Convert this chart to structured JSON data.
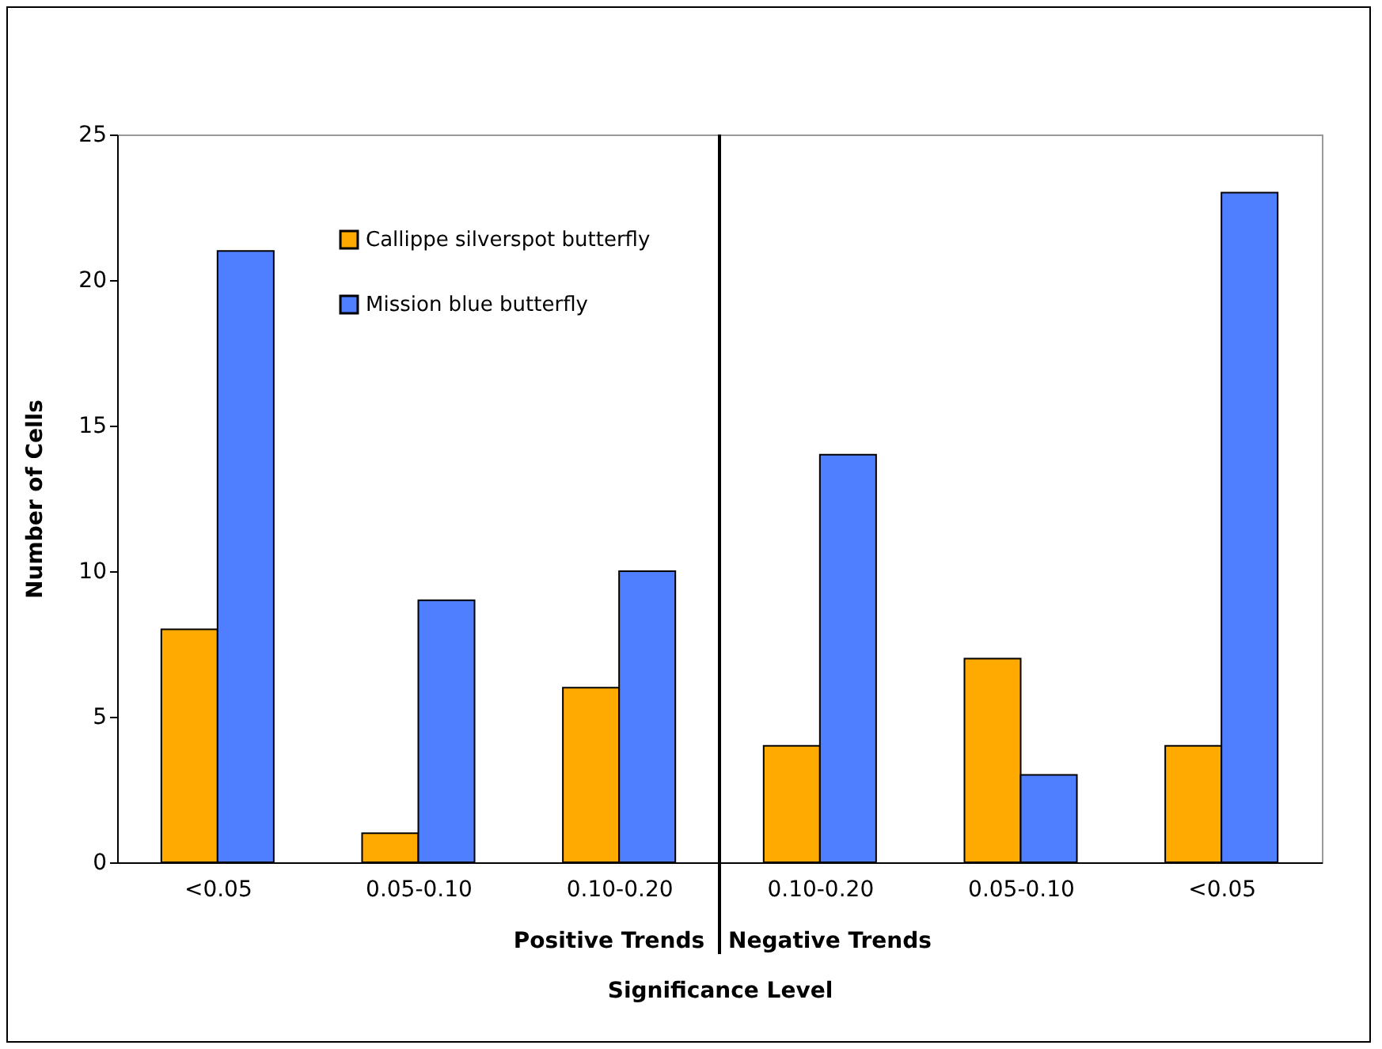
{
  "chart_data": {
    "type": "bar",
    "xlabel": "Significance Level",
    "ylabel": "Number of Cells",
    "categories": [
      "<0.05",
      "0.05-0.10",
      "0.10-0.20",
      "0.10-0.20",
      "0.05-0.10",
      "<0.05"
    ],
    "series": [
      {
        "name": "Callippe silverspot butterfly",
        "color": "#ffaa00",
        "values": [
          8,
          1,
          6,
          4,
          7,
          4
        ]
      },
      {
        "name": "Mission blue butterfly",
        "color": "#4f7fff",
        "values": [
          21,
          9,
          10,
          14,
          3,
          23
        ]
      }
    ],
    "ylim": [
      0,
      25
    ],
    "yticks": [
      0,
      5,
      10,
      15,
      20,
      25
    ],
    "grid": false,
    "legend": "top left",
    "annotations": [
      "Positive Trends",
      "Negative Trends"
    ]
  }
}
